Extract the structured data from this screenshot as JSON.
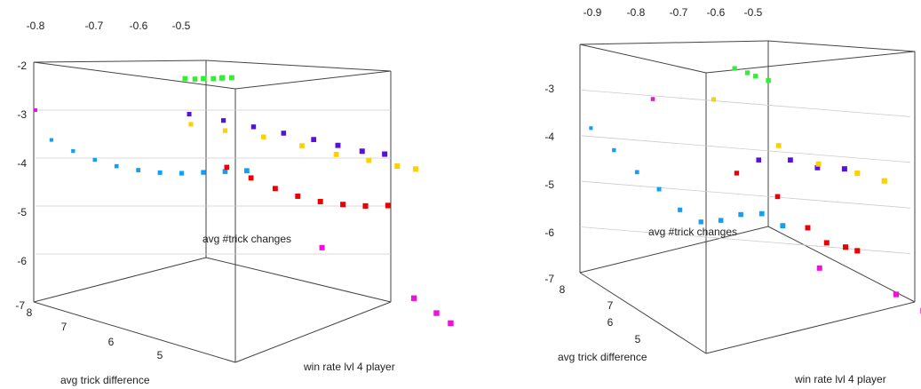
{
  "chart_data": [
    {
      "type": "scatter3d",
      "panel": "left",
      "title": "",
      "xlabel": "win rate lvl 4 player",
      "ylabel": "avg trick difference",
      "zlabel": "avg #trick changes",
      "top_ticks": [
        "-0.8",
        "-0.7",
        "-0.6",
        "-0.5"
      ],
      "z_ticks": [
        "-2",
        "-3",
        "-4",
        "-5",
        "-6",
        "-7"
      ],
      "depth_ticks": [
        "8",
        "7",
        "6",
        "5"
      ],
      "grid": true,
      "colors": {
        "green": "#33ee33",
        "purple": "#5511dd",
        "yellow": "#ffd000",
        "blue": "#12a0f6",
        "red": "#ee0000",
        "magenta": "#ee10dd"
      },
      "series": [
        {
          "color": "green",
          "points": [
            [
              -0.5,
              -2.0,
              5.2
            ],
            [
              -0.52,
              -2.02,
              5.3
            ],
            [
              -0.54,
              -2.03,
              5.3
            ],
            [
              -0.56,
              -2.04,
              5.4
            ],
            [
              -0.58,
              -2.05,
              5.4
            ],
            [
              -0.6,
              -2.05,
              5.5
            ],
            [
              -0.55,
              -2.06,
              5.6
            ],
            [
              -0.51,
              -2.03,
              5.5
            ]
          ]
        },
        {
          "color": "purple",
          "points": [
            [
              -0.55,
              -2.9,
              6.5
            ],
            [
              -0.48,
              -3.0,
              6.2
            ],
            [
              -0.42,
              -3.1,
              5.9
            ],
            [
              -0.36,
              -3.2,
              5.6
            ],
            [
              -0.3,
              -3.3,
              5.3
            ],
            [
              -0.25,
              -3.4,
              5.1
            ],
            [
              -0.2,
              -3.5,
              4.9
            ],
            [
              -0.15,
              -3.55,
              4.8
            ]
          ]
        },
        {
          "color": "yellow",
          "points": [
            [
              -0.55,
              -3.1,
              6.4
            ],
            [
              -0.48,
              -3.2,
              6.1
            ],
            [
              -0.4,
              -3.3,
              5.8
            ],
            [
              -0.32,
              -3.45,
              5.5
            ],
            [
              -0.25,
              -3.6,
              5.2
            ],
            [
              -0.18,
              -3.7,
              5.0
            ],
            [
              -0.12,
              -3.8,
              4.8
            ],
            [
              -0.08,
              -3.85,
              4.7
            ]
          ]
        },
        {
          "color": "blue",
          "points": [
            [
              -0.82,
              -3.6,
              8.0
            ],
            [
              -0.78,
              -3.8,
              7.7
            ],
            [
              -0.74,
              -3.95,
              7.4
            ],
            [
              -0.7,
              -4.05,
              7.1
            ],
            [
              -0.66,
              -4.1,
              6.8
            ],
            [
              -0.62,
              -4.12,
              6.5
            ],
            [
              -0.58,
              -4.1,
              6.2
            ],
            [
              -0.54,
              -4.05,
              5.9
            ],
            [
              -0.5,
              -4.0,
              5.6
            ],
            [
              -0.46,
              -3.95,
              5.3
            ]
          ]
        },
        {
          "color": "red",
          "points": [
            [
              -0.5,
              -3.9,
              5.5
            ],
            [
              -0.45,
              -4.1,
              5.3
            ],
            [
              -0.4,
              -4.3,
              5.1
            ],
            [
              -0.35,
              -4.45,
              5.0
            ],
            [
              -0.3,
              -4.55,
              4.9
            ],
            [
              -0.25,
              -4.6,
              4.8
            ],
            [
              -0.2,
              -4.62,
              4.7
            ],
            [
              -0.15,
              -4.6,
              4.6
            ]
          ]
        },
        {
          "color": "magenta",
          "points": [
            [
              -0.85,
              -3.0,
              8.2
            ],
            [
              -0.3,
              -5.5,
              4.8
            ],
            [
              -0.1,
              -6.5,
              4.3
            ],
            [
              -0.05,
              -6.8,
              4.2
            ],
            [
              -0.02,
              -7.0,
              4.1
            ]
          ]
        }
      ]
    },
    {
      "type": "scatter3d",
      "panel": "right",
      "title": "",
      "xlabel": "win rate lvl 4 player",
      "ylabel": "avg trick difference",
      "zlabel": "avg #trick changes",
      "top_ticks": [
        "-0.9",
        "-0.8",
        "-0.7",
        "-0.6",
        "-0.5"
      ],
      "z_ticks": [
        "-3",
        "-4",
        "-5",
        "-6",
        "-7"
      ],
      "depth_ticks": [
        "8",
        "7",
        "6",
        "5"
      ],
      "grid": true,
      "colors": {
        "green": "#33ee33",
        "purple": "#5511dd",
        "yellow": "#ffd000",
        "blue": "#12a0f6",
        "red": "#ee0000",
        "magenta": "#ee10dd"
      },
      "series": [
        {
          "color": "green",
          "points": [
            [
              -0.55,
              -2.2,
              6.2
            ],
            [
              -0.52,
              -2.25,
              6.0
            ],
            [
              -0.5,
              -2.3,
              5.9
            ],
            [
              -0.47,
              -2.35,
              5.7
            ]
          ]
        },
        {
          "color": "purple",
          "points": [
            [
              -0.5,
              -4.2,
              5.6
            ],
            [
              -0.42,
              -4.1,
              5.3
            ],
            [
              -0.35,
              -4.2,
              5.1
            ],
            [
              -0.28,
              -4.15,
              4.9
            ]
          ]
        },
        {
          "color": "yellow",
          "points": [
            [
              -0.6,
              -3.0,
              6.5
            ],
            [
              -0.45,
              -3.8,
              5.4
            ],
            [
              -0.35,
              -4.1,
              5.0
            ],
            [
              -0.25,
              -4.2,
              4.7
            ],
            [
              -0.18,
              -4.3,
              4.5
            ]
          ]
        },
        {
          "color": "blue",
          "points": [
            [
              -0.9,
              -4.1,
              8.0
            ],
            [
              -0.85,
              -4.5,
              7.5
            ],
            [
              -0.8,
              -4.9,
              7.0
            ],
            [
              -0.75,
              -5.2,
              6.6
            ],
            [
              -0.7,
              -5.6,
              6.3
            ],
            [
              -0.65,
              -5.8,
              6.0
            ],
            [
              -0.6,
              -5.7,
              5.8
            ],
            [
              -0.55,
              -5.5,
              5.6
            ],
            [
              -0.5,
              -5.4,
              5.3
            ],
            [
              -0.45,
              -5.6,
              5.0
            ]
          ]
        },
        {
          "color": "red",
          "points": [
            [
              -0.55,
              -4.6,
              6.0
            ],
            [
              -0.45,
              -5.0,
              5.5
            ],
            [
              -0.38,
              -5.6,
              5.0
            ],
            [
              -0.33,
              -5.9,
              4.9
            ],
            [
              -0.28,
              -5.95,
              4.8
            ],
            [
              -0.25,
              -6.0,
              4.7
            ]
          ]
        },
        {
          "color": "magenta",
          "points": [
            [
              -0.75,
              -3.2,
              7.2
            ],
            [
              -0.35,
              -6.5,
              4.9
            ],
            [
              -0.15,
              -6.9,
              4.4
            ],
            [
              -0.08,
              -7.2,
              4.2
            ],
            [
              -0.04,
              -7.4,
              4.1
            ]
          ]
        }
      ]
    }
  ]
}
